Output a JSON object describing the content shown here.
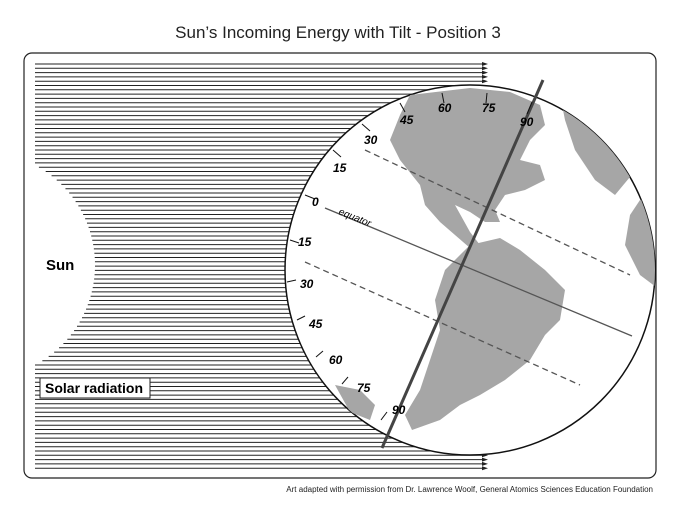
{
  "header": {
    "title": "Sun’s Incoming Energy with Tilt - Position 3"
  },
  "labels": {
    "sun": "Sun",
    "solar_radiation": "Solar radiation",
    "equator": "equator"
  },
  "latitudes": [
    "90",
    "75",
    "60",
    "45",
    "30",
    "15",
    "0",
    "15",
    "30",
    "45",
    "60",
    "75",
    "90"
  ],
  "footer": {
    "credit": "Art adapted with permission from Dr. Lawrence Woolf, General Atomics Sciences Education Foundation"
  }
}
